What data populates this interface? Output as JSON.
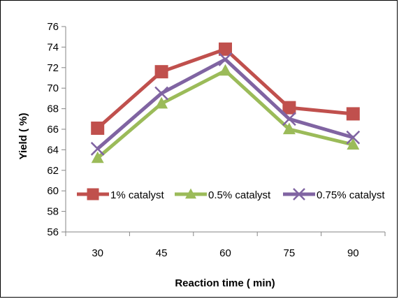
{
  "chart_data": {
    "type": "line",
    "xlabel": "Reaction time ( min)",
    "ylabel": "Yield ( %)",
    "categories": [
      "30",
      "45",
      "60",
      "75",
      "90"
    ],
    "ylim": [
      56,
      76
    ],
    "yticks": [
      "56",
      "58",
      "60",
      "62",
      "64",
      "66",
      "68",
      "70",
      "72",
      "74",
      "76"
    ],
    "grid": false,
    "legend_position": "bottom-inside",
    "series": [
      {
        "name": "1% catalyst",
        "values": [
          66.1,
          71.6,
          73.8,
          68.1,
          67.5
        ],
        "color": "#c0504d",
        "marker": "square"
      },
      {
        "name": "0.5% catalyst",
        "values": [
          63.2,
          68.5,
          71.7,
          66.0,
          64.5
        ],
        "color": "#9bbb59",
        "marker": "triangle"
      },
      {
        "name": "0.75% catalyst",
        "values": [
          64.1,
          69.5,
          72.8,
          67.0,
          65.2
        ],
        "color": "#8064a2",
        "marker": "x"
      }
    ]
  }
}
